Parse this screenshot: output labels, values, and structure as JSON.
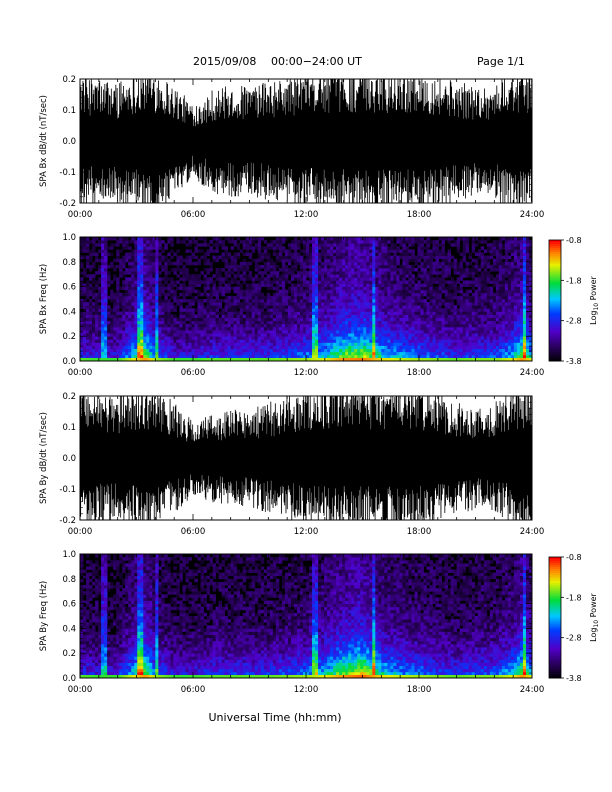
{
  "header": {
    "date": "2015/09/08",
    "time_range": "00:00−24:00 UT",
    "page": "Page 1/1"
  },
  "xaxis_label": "Universal Time (hh:mm)",
  "colorbar": {
    "label_main": "Log",
    "label_sub": "10",
    "label_tail": " Power",
    "ticks": [
      "-0.8",
      "-1.8",
      "-2.8",
      "-3.8"
    ]
  },
  "chart_data": [
    {
      "type": "line",
      "ylabel": "SPA Bx dB/dt (nT/sec)",
      "x_ticks": [
        "00:00",
        "06:00",
        "12:00",
        "18:00",
        "24:00"
      ],
      "y_ticks": [
        "-0.2",
        "-0.1",
        "0.0",
        "0.1",
        "0.2"
      ],
      "xlim": [
        0,
        24
      ],
      "ylim": [
        -0.2,
        0.2
      ],
      "series": [
        {
          "hours": [
            0,
            1,
            2,
            3,
            3.5,
            4,
            5,
            6,
            7,
            8,
            9,
            10,
            11,
            12,
            13,
            14,
            15,
            16,
            17,
            18,
            19,
            20,
            21,
            22,
            22.5,
            23,
            23.5,
            24
          ],
          "amplitude": [
            0.19,
            0.17,
            0.16,
            0.2,
            0.2,
            0.2,
            0.15,
            0.1,
            0.14,
            0.15,
            0.15,
            0.16,
            0.17,
            0.19,
            0.2,
            0.2,
            0.2,
            0.2,
            0.2,
            0.2,
            0.18,
            0.16,
            0.15,
            0.15,
            0.18,
            0.2,
            0.2,
            0.2
          ]
        }
      ]
    },
    {
      "type": "heatmap",
      "ylabel": "SPA Bx Freq (Hz)",
      "x_ticks": [
        "00:00",
        "06:00",
        "12:00",
        "18:00",
        "24:00"
      ],
      "y_ticks": [
        "0.0",
        "0.2",
        "0.4",
        "0.6",
        "0.8",
        "1.0"
      ],
      "xlim": [
        0,
        24
      ],
      "ylim": [
        0,
        1.0
      ],
      "zlim": [
        -3.8,
        -0.8
      ],
      "z_label": "Log10 Power",
      "activity_hours": [
        0,
        1,
        2,
        3,
        3.5,
        4,
        5,
        6,
        7,
        8,
        9,
        10,
        11,
        12,
        13,
        14,
        15,
        16,
        17,
        18,
        19,
        20,
        21,
        22,
        23,
        23.5,
        24
      ],
      "activity": [
        0.35,
        0.3,
        0.3,
        0.6,
        0.75,
        0.45,
        0.3,
        0.3,
        0.35,
        0.35,
        0.35,
        0.35,
        0.4,
        0.45,
        0.55,
        0.75,
        0.8,
        0.6,
        0.5,
        0.45,
        0.4,
        0.35,
        0.4,
        0.4,
        0.55,
        0.75,
        0.5
      ],
      "lines_hours": [
        1.3,
        3.2,
        4.1,
        12.5,
        15.6,
        23.6
      ]
    },
    {
      "type": "line",
      "ylabel": "SPA By dB/dt (nT/sec)",
      "x_ticks": [
        "00:00",
        "06:00",
        "12:00",
        "18:00",
        "24:00"
      ],
      "y_ticks": [
        "-0.2",
        "-0.1",
        "0.0",
        "0.1",
        "0.2"
      ],
      "xlim": [
        0,
        24
      ],
      "ylim": [
        -0.2,
        0.2
      ],
      "series": [
        {
          "hours": [
            0,
            1,
            2,
            3,
            3.5,
            4,
            5,
            6,
            7,
            8,
            9,
            10,
            11,
            12,
            13,
            14,
            15,
            16,
            17,
            18,
            19,
            20,
            21,
            22,
            22.5,
            23,
            23.5,
            24
          ],
          "amplitude": [
            0.2,
            0.18,
            0.17,
            0.2,
            0.2,
            0.2,
            0.15,
            0.1,
            0.12,
            0.13,
            0.13,
            0.15,
            0.17,
            0.19,
            0.2,
            0.2,
            0.2,
            0.2,
            0.2,
            0.2,
            0.18,
            0.15,
            0.14,
            0.15,
            0.17,
            0.2,
            0.2,
            0.2
          ]
        }
      ]
    },
    {
      "type": "heatmap",
      "ylabel": "SPA By Freq (Hz)",
      "x_ticks": [
        "00:00",
        "06:00",
        "12:00",
        "18:00",
        "24:00"
      ],
      "y_ticks": [
        "0.0",
        "0.2",
        "0.4",
        "0.6",
        "0.8",
        "1.0"
      ],
      "xlim": [
        0,
        24
      ],
      "ylim": [
        0,
        1.0
      ],
      "zlim": [
        -3.8,
        -0.8
      ],
      "z_label": "Log10 Power",
      "activity_hours": [
        0,
        1,
        2,
        3,
        3.5,
        4,
        5,
        6,
        7,
        8,
        9,
        10,
        11,
        12,
        13,
        14,
        15,
        16,
        17,
        18,
        19,
        20,
        21,
        22,
        23,
        23.5,
        24
      ],
      "activity": [
        0.35,
        0.3,
        0.3,
        0.6,
        0.75,
        0.45,
        0.3,
        0.3,
        0.35,
        0.35,
        0.35,
        0.35,
        0.4,
        0.45,
        0.55,
        0.75,
        0.85,
        0.6,
        0.5,
        0.45,
        0.4,
        0.35,
        0.4,
        0.4,
        0.55,
        0.75,
        0.5
      ],
      "lines_hours": [
        1.3,
        3.2,
        4.1,
        12.5,
        15.6,
        23.6
      ]
    }
  ]
}
